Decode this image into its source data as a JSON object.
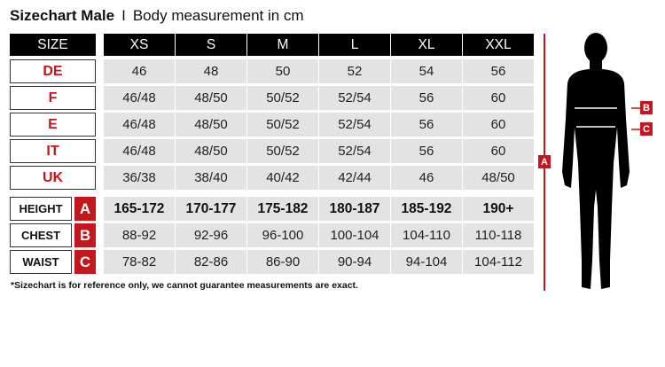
{
  "title": {
    "bold": "Sizechart Male",
    "separator": "I",
    "subtitle": "Body measurement in cm"
  },
  "header": {
    "size_label": "SIZE",
    "sizes": [
      "XS",
      "S",
      "M",
      "L",
      "XL",
      "XXL"
    ]
  },
  "size_rows": [
    {
      "label": "DE",
      "values": [
        "46",
        "48",
        "50",
        "52",
        "54",
        "56"
      ]
    },
    {
      "label": "F",
      "values": [
        "46/48",
        "48/50",
        "50/52",
        "52/54",
        "56",
        "60"
      ]
    },
    {
      "label": "E",
      "values": [
        "46/48",
        "48/50",
        "50/52",
        "52/54",
        "56",
        "60"
      ]
    },
    {
      "label": "IT",
      "values": [
        "46/48",
        "48/50",
        "50/52",
        "52/54",
        "56",
        "60"
      ]
    },
    {
      "label": "UK",
      "values": [
        "36/38",
        "38/40",
        "40/42",
        "42/44",
        "46",
        "48/50"
      ]
    }
  ],
  "measure_rows": [
    {
      "label": "HEIGHT",
      "marker": "A",
      "values": [
        "165-172",
        "170-177",
        "175-182",
        "180-187",
        "185-192",
        "190+"
      ]
    },
    {
      "label": "CHEST",
      "marker": "B",
      "values": [
        "88-92",
        "92-96",
        "96-100",
        "100-104",
        "104-110",
        "110-118"
      ]
    },
    {
      "label": "WAIST",
      "marker": "C",
      "values": [
        "78-82",
        "82-86",
        "86-90",
        "90-94",
        "94-104",
        "104-112"
      ]
    }
  ],
  "footnote": "*Sizechart is for reference only, we cannot guarantee measurements are exact.",
  "figure": {
    "height_marker": "A",
    "chest_marker": "B",
    "waist_marker": "C"
  },
  "colors": {
    "accent": "#c4161c",
    "header_bg": "#000000",
    "cell_bg": "#e3e3e3"
  }
}
